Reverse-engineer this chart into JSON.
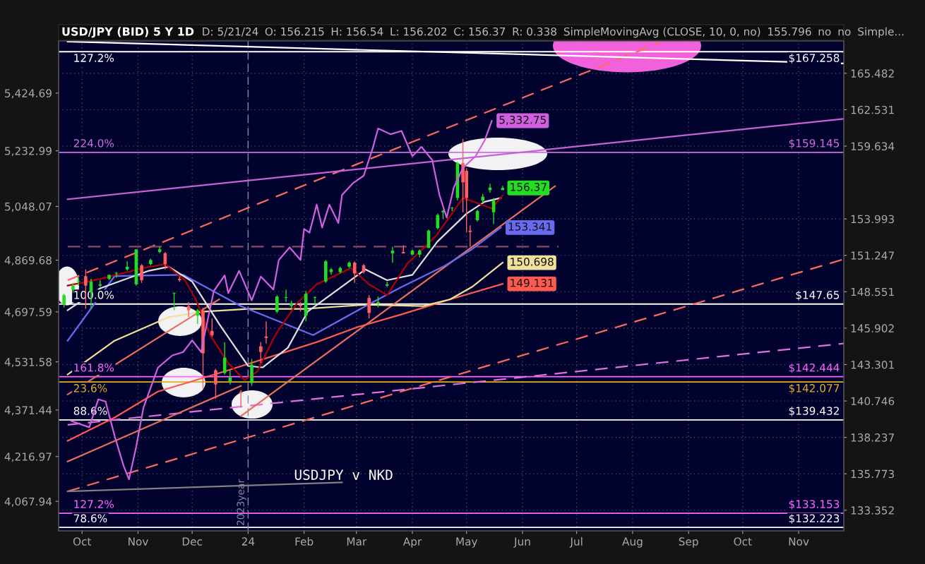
{
  "chart_data": {
    "type": "candlestick",
    "title": "USD/JPY (BID) 5 Y 1D",
    "annotations": [
      "D: 5/21/24",
      "O: 156.215",
      "H: 156.54",
      "L: 156.202",
      "C: 156.37",
      "R: 0.338",
      "SimpleMovingAvg (CLOSE, 10, 0, no)",
      "155.796",
      "no",
      "no",
      "Simple...",
      "USDJPY v NKD",
      {
        "text": "127.2%",
        "x": "2023-09-25",
        "y": 167.258
      },
      {
        "text": "224.0%",
        "x": "2023-09-25",
        "y": 159.145
      },
      {
        "text": "100.0%",
        "x": "2023-09-25",
        "y": 147.65
      },
      {
        "text": "161.8%",
        "x": "2023-09-25",
        "y": 142.444
      },
      {
        "text": "23.6%",
        "x": "2023-09-25",
        "y": 142.077
      },
      {
        "text": "88.6%",
        "x": "2023-09-25",
        "y": 139.432
      },
      {
        "text": "127.2%",
        "x": "2023-09-25",
        "y": 133.153
      },
      {
        "text": "78.6%",
        "x": "2023-09-25",
        "y": 132.223
      },
      {
        "text": "156.37",
        "x": "2024-05-21",
        "y": 156.37
      }
    ],
    "x": [
      "2023-09-21",
      "2023-09-26",
      "2023-09-29",
      "2023-10-03",
      "2023-10-06",
      "2023-10-11",
      "2023-10-16",
      "2023-10-20",
      "2023-10-26",
      "2023-10-31",
      "2023-11-03",
      "2023-11-08",
      "2023-11-13",
      "2023-11-16",
      "2023-11-21",
      "2023-11-24",
      "2023-11-29",
      "2023-12-04",
      "2023-12-07",
      "2023-12-12",
      "2023-12-14",
      "2023-12-19",
      "2023-12-22",
      "2023-12-28",
      "2024-01-03",
      "2024-01-08",
      "2024-01-11",
      "2024-01-17",
      "2024-01-22",
      "2024-01-25",
      "2024-01-30",
      "2024-02-02",
      "2024-02-07",
      "2024-02-13",
      "2024-02-16",
      "2024-02-21",
      "2024-02-26",
      "2024-02-29",
      "2024-03-05",
      "2024-03-08",
      "2024-03-13",
      "2024-03-18",
      "2024-03-21",
      "2024-03-27",
      "2024-04-01",
      "2024-04-05",
      "2024-04-10",
      "2024-04-15",
      "2024-04-18",
      "2024-04-23",
      "2024-04-26",
      "2024-04-29",
      "2024-05-01",
      "2024-05-03",
      "2024-05-07",
      "2024-05-10",
      "2024-05-14",
      "2024-05-16",
      "2024-05-21"
    ],
    "ohlc": [
      [
        147.6,
        148.4,
        147.4,
        148.3
      ],
      [
        148.7,
        149.2,
        148.5,
        149.0
      ],
      [
        149.3,
        149.7,
        149.0,
        149.3
      ],
      [
        149.7,
        150.2,
        147.3,
        149.0
      ],
      [
        148.5,
        149.5,
        147.3,
        149.3
      ],
      [
        149.0,
        149.4,
        148.9,
        149.1
      ],
      [
        149.5,
        149.8,
        149.4,
        149.8
      ],
      [
        149.9,
        150.0,
        149.6,
        149.9
      ],
      [
        150.2,
        150.8,
        150.1,
        150.4
      ],
      [
        149.1,
        151.7,
        149.0,
        151.7
      ],
      [
        150.5,
        150.6,
        149.2,
        149.4
      ],
      [
        150.6,
        151.0,
        150.5,
        150.9
      ],
      [
        151.5,
        151.9,
        151.4,
        151.7
      ],
      [
        151.4,
        151.5,
        150.2,
        150.6
      ],
      [
        148.4,
        148.5,
        147.2,
        148.4
      ],
      [
        149.5,
        149.7,
        149.3,
        149.4
      ],
      [
        147.5,
        147.8,
        146.7,
        147.2
      ],
      [
        146.8,
        147.3,
        146.2,
        147.2
      ],
      [
        147.2,
        147.4,
        141.6,
        144.1
      ],
      [
        145.7,
        146.6,
        145.3,
        145.4
      ],
      [
        142.9,
        143.0,
        140.9,
        141.9
      ],
      [
        142.7,
        144.9,
        142.6,
        143.8
      ],
      [
        142.1,
        142.9,
        141.9,
        142.4
      ],
      [
        141.4,
        141.5,
        140.3,
        141.3
      ],
      [
        142.0,
        143.7,
        141.8,
        143.3
      ],
      [
        144.6,
        144.9,
        143.4,
        144.2
      ],
      [
        145.3,
        146.4,
        144.8,
        145.2
      ],
      [
        147.1,
        148.3,
        147.0,
        148.2
      ],
      [
        148.1,
        148.7,
        147.8,
        148.1
      ],
      [
        147.5,
        147.9,
        147.3,
        147.7
      ],
      [
        147.6,
        147.8,
        147.1,
        147.5
      ],
      [
        146.8,
        148.6,
        146.4,
        148.4
      ],
      [
        148.1,
        148.2,
        147.6,
        148.1
      ],
      [
        149.3,
        150.9,
        149.2,
        150.8
      ],
      [
        150.0,
        150.3,
        149.8,
        150.2
      ],
      [
        150.0,
        150.4,
        149.9,
        150.3
      ],
      [
        150.4,
        150.8,
        150.3,
        150.7
      ],
      [
        150.7,
        150.8,
        149.2,
        149.9
      ],
      [
        150.5,
        150.6,
        149.9,
        150.0
      ],
      [
        148.1,
        148.3,
        146.6,
        147.0
      ],
      [
        147.7,
        148.2,
        147.4,
        147.8
      ],
      [
        149.0,
        149.3,
        148.9,
        149.1
      ],
      [
        151.4,
        151.9,
        150.7,
        151.6
      ],
      [
        151.5,
        152.0,
        151.4,
        151.4
      ],
      [
        151.3,
        151.7,
        151.3,
        151.6
      ],
      [
        151.3,
        151.7,
        151.1,
        151.6
      ],
      [
        151.8,
        153.2,
        151.8,
        153.1
      ],
      [
        153.3,
        154.4,
        153.2,
        154.3
      ],
      [
        154.5,
        154.7,
        154.0,
        154.6
      ],
      [
        154.8,
        154.9,
        154.6,
        154.8
      ],
      [
        155.6,
        158.4,
        155.4,
        158.3
      ],
      [
        158.3,
        160.2,
        154.5,
        156.8
      ],
      [
        157.7,
        157.9,
        153.0,
        155.6
      ],
      [
        153.1,
        153.5,
        151.9,
        153.0
      ],
      [
        153.9,
        154.7,
        153.8,
        154.6
      ],
      [
        155.4,
        155.9,
        155.2,
        155.7
      ],
      [
        156.2,
        156.7,
        156.0,
        156.4
      ],
      [
        154.5,
        155.6,
        153.6,
        155.4
      ],
      [
        156.2,
        156.54,
        156.2,
        156.37
      ]
    ],
    "series": [
      {
        "type": "line",
        "color": "#ff6b5b",
        "line_style": "dashed",
        "x": [
          "2023-09-23",
          "2024-08-16"
        ],
        "values": [
          149.4,
          168.0
        ]
      },
      {
        "type": "line",
        "color": "#ff6b5b",
        "line_style": "dashed",
        "x": [
          "2023-09-23",
          "2024-11-26"
        ],
        "values": [
          134.6,
          150.96
        ]
      },
      {
        "type": "line",
        "color": "#e070e0",
        "line_style": "dashed",
        "x": [
          "2023-09-23",
          "2024-11-26"
        ],
        "values": [
          139.1,
          144.8
        ]
      },
      {
        "type": "line",
        "color": "#c860d8",
        "x": [
          "2023-09-23",
          "2024-11-26"
        ],
        "values": [
          155.5,
          161.8
        ]
      },
      {
        "type": "line",
        "color": "#ffffff",
        "x": [
          "2023-09-23",
          "2024-11-26"
        ],
        "values": [
          168.1,
          166.29
        ]
      },
      {
        "type": "line",
        "color": "#8a4a62",
        "line_style": "dashed",
        "x": [
          "2023-09-23",
          "2024-06-21"
        ],
        "values": [
          151.9,
          151.9
        ]
      },
      {
        "type": "line",
        "color": "#e8705a",
        "x": [
          "2023-12-28",
          "2024-06-19"
        ],
        "values": [
          139.7,
          156.5
        ]
      },
      {
        "type": "line",
        "color": "#e8705a",
        "x": [
          "2023-09-23",
          "2023-12-16"
        ],
        "values": [
          141.2,
          148.0
        ]
      },
      {
        "type": "line",
        "color": "#e8705a",
        "x": [
          "2023-09-23",
          "2023-12-28"
        ],
        "values": [
          136.6,
          141.8
        ]
      },
      {
        "type": "line",
        "color": "#808080",
        "x": [
          "2023-09-23",
          "2024-02-22"
        ],
        "values": [
          134.6,
          135.2
        ]
      },
      {
        "type": "line",
        "color": "#ff5a50",
        "x": [
          "2023-09-23",
          "2023-10-19",
          "2023-11-12",
          "2023-12-21",
          "2024-02-08",
          "2024-03-02",
          "2024-03-26",
          "2024-04-22",
          "2024-05-21"
        ],
        "values": [
          138.0,
          139.6,
          141.4,
          142.9,
          144.9,
          146.0,
          146.9,
          148.0,
          149.131
        ],
        "value_labels": [
          null,
          null,
          null,
          null,
          null,
          null,
          null,
          null,
          "149.131"
        ]
      },
      {
        "type": "line",
        "color": "#f0e09a",
        "x": [
          "2023-09-23",
          "2023-10-19",
          "2023-11-18",
          "2023-12-08",
          "2024-01-01",
          "2024-02-01",
          "2024-03-06",
          "2024-04-07",
          "2024-04-22",
          "2024-05-04",
          "2024-05-21"
        ],
        "values": [
          142.6,
          145.0,
          146.7,
          147.1,
          147.3,
          147.3,
          147.6,
          147.5,
          148.0,
          148.9,
          150.698
        ],
        "value_labels": [
          null,
          null,
          null,
          null,
          null,
          null,
          null,
          null,
          null,
          null,
          "150.698"
        ]
      },
      {
        "type": "line",
        "color": "#6a6af0",
        "x": [
          "2023-09-23",
          "2023-10-19",
          "2023-11-26",
          "2023-12-28",
          "2024-02-06",
          "2024-03-06",
          "2024-03-26",
          "2024-04-18",
          "2024-05-04",
          "2024-05-20"
        ],
        "values": [
          145.0,
          149.7,
          149.8,
          147.5,
          145.4,
          147.5,
          148.9,
          150.4,
          151.7,
          153.341
        ],
        "value_labels": [
          null,
          null,
          null,
          null,
          null,
          null,
          null,
          null,
          null,
          "153.341"
        ]
      },
      {
        "type": "line",
        "color": "#e0e0e0",
        "x": [
          "2023-09-23",
          "2023-10-11",
          "2023-11-07",
          "2023-11-18",
          "2023-12-01",
          "2023-12-16",
          "2024-01-01",
          "2024-01-09",
          "2024-01-23",
          "2024-02-03",
          "2024-03-06",
          "2024-03-18",
          "2024-04-01",
          "2024-04-15",
          "2024-05-01",
          "2024-05-11",
          "2024-05-20"
        ],
        "values": [
          147.2,
          148.8,
          150.1,
          150.4,
          149.3,
          146.2,
          143.2,
          143.1,
          144.5,
          147.1,
          150.2,
          149.4,
          149.8,
          152.3,
          154.4,
          155.3,
          155.6
        ]
      },
      {
        "type": "line",
        "color": "#b00000",
        "x": [
          "2023-09-23",
          "2023-10-11",
          "2023-11-04",
          "2023-11-16",
          "2023-11-27",
          "2023-12-03",
          "2023-12-11",
          "2023-12-21",
          "2023-12-30",
          "2024-01-06",
          "2024-01-16",
          "2024-01-28",
          "2024-02-08",
          "2024-02-27",
          "2024-03-08",
          "2024-03-18",
          "2024-03-29",
          "2024-04-14",
          "2024-04-29",
          "2024-05-07",
          "2024-05-15",
          "2024-05-21"
        ],
        "values": [
          149.0,
          149.5,
          150.3,
          150.6,
          149.4,
          148.0,
          145.4,
          143.4,
          142.2,
          142.8,
          145.4,
          147.7,
          149.1,
          150.3,
          149.1,
          148.3,
          150.6,
          152.7,
          155.6,
          155.2,
          154.8,
          155.8
        ]
      },
      {
        "type": "line",
        "axis": "y2",
        "color": "#d060e0",
        "x": [
          "2023-09-25",
          "2023-10-05",
          "2023-10-10",
          "2023-10-14",
          "2023-10-19",
          "2023-10-24",
          "2023-10-27",
          "2023-10-31",
          "2023-11-04",
          "2023-11-12",
          "2023-11-20",
          "2023-11-26",
          "2023-12-01",
          "2023-12-06",
          "2023-12-08",
          "2023-12-13",
          "2023-12-19",
          "2023-12-21",
          "2023-12-27",
          "2024-01-03",
          "2024-01-08",
          "2024-01-15",
          "2024-01-18",
          "2024-01-24",
          "2024-01-30",
          "2024-02-01",
          "2024-02-04",
          "2024-02-08",
          "2024-02-11",
          "2024-02-15",
          "2024-02-20",
          "2024-02-22",
          "2024-02-28",
          "2024-03-05",
          "2024-03-10",
          "2024-03-13",
          "2024-03-20",
          "2024-03-26",
          "2024-04-01",
          "2024-04-06",
          "2024-04-12",
          "2024-04-16",
          "2024-04-20",
          "2024-04-24",
          "2024-04-29",
          "2024-05-06",
          "2024-05-11",
          "2024-05-15"
        ],
        "values": [
          4335,
          4314,
          4407,
          4400,
          4286,
          4186,
          4141,
          4250,
          4379,
          4512,
          4553,
          4564,
          4603,
          4564,
          4626,
          4767,
          4819,
          4760,
          4834,
          4736,
          4815,
          4772,
          4870,
          4912,
          4870,
          4973,
          4961,
          5054,
          4978,
          5054,
          4993,
          5086,
          5125,
          5150,
          5241,
          5307,
          5288,
          5299,
          5215,
          5246,
          5202,
          5086,
          5011,
          5112,
          5176,
          5215,
          5267,
          5332.75
        ],
        "value_labels": [
          null,
          null,
          null,
          null,
          null,
          null,
          null,
          null,
          null,
          null,
          null,
          null,
          null,
          null,
          null,
          null,
          null,
          null,
          null,
          null,
          null,
          null,
          null,
          null,
          null,
          null,
          null,
          null,
          null,
          null,
          null,
          null,
          null,
          null,
          null,
          null,
          null,
          null,
          null,
          null,
          null,
          null,
          null,
          null,
          null,
          null,
          null,
          "5,332.75"
        ]
      }
    ],
    "ref_lines": [
      {
        "axis": "y",
        "value": 167.258,
        "label": "$167.258",
        "color": "#ffffff"
      },
      {
        "axis": "y",
        "value": 159.145,
        "label": "$159.145",
        "color": "#d070e0"
      },
      {
        "axis": "y",
        "value": 147.65,
        "label": "$147.65",
        "color": "#ffffff"
      },
      {
        "axis": "y",
        "value": 142.444,
        "label": "$142.444",
        "color": "#ff66ff"
      },
      {
        "axis": "y",
        "value": 142.077,
        "label": "$142.077",
        "color": "#e0b020"
      },
      {
        "axis": "y",
        "value": 139.432,
        "label": "$139.432",
        "color": "#ffffff"
      },
      {
        "axis": "y",
        "value": 133.153,
        "label": "$133.153",
        "color": "#ff66ff"
      },
      {
        "axis": "y",
        "value": 132.223,
        "label": "$132.223",
        "color": "#ffffff"
      },
      {
        "axis": "x",
        "value": "2024-01-01",
        "label": "2023year",
        "color": "#8888aa",
        "line_style": "dashed"
      }
    ],
    "log": "y",
    "grid": true,
    "xlim": [
      "2023-09-18",
      "2024-11-26"
    ],
    "xticks": [
      {
        "value": "2023-10-01",
        "label": "Oct"
      },
      {
        "value": "2023-11-01",
        "label": "Nov"
      },
      {
        "value": "2023-12-01",
        "label": "Dec"
      },
      {
        "value": "2024-01-01",
        "label": "24"
      },
      {
        "value": "2024-02-01",
        "label": "Feb"
      },
      {
        "value": "2024-03-01",
        "label": "Mar"
      },
      {
        "value": "2024-04-01",
        "label": "Apr"
      },
      {
        "value": "2024-05-01",
        "label": "May"
      },
      {
        "value": "2024-06-01",
        "label": "Jun"
      },
      {
        "value": "2024-07-01",
        "label": "Jul"
      },
      {
        "value": "2024-08-01",
        "label": "Aug"
      },
      {
        "value": "2024-09-01",
        "label": "Sep"
      },
      {
        "value": "2024-10-01",
        "label": "Oct"
      },
      {
        "value": "2024-11-01",
        "label": "Nov"
      }
    ],
    "ylim": [
      132.0,
      168.15
    ],
    "yticks": [
      133.352,
      135.773,
      138.237,
      140.746,
      143.301,
      145.902,
      148.551,
      151.247,
      153.993,
      159.634,
      162.531,
      165.482
    ],
    "y2lim": [
      3970,
      5598
    ],
    "y2ticks": [
      {
        "value": 4067.94,
        "label": "4,067.94"
      },
      {
        "value": 4216.97,
        "label": "4,216.97"
      },
      {
        "value": 4371.44,
        "label": "4,371.44"
      },
      {
        "value": 4531.58,
        "label": "4,531.58"
      },
      {
        "value": 4697.59,
        "label": "4,697.59"
      },
      {
        "value": 4869.68,
        "label": "4,869.68"
      },
      {
        "value": 5048.07,
        "label": "5,048.07"
      },
      {
        "value": 5232.99,
        "label": "5,232.99"
      },
      {
        "value": 5424.69,
        "label": "5,424.69"
      }
    ]
  }
}
